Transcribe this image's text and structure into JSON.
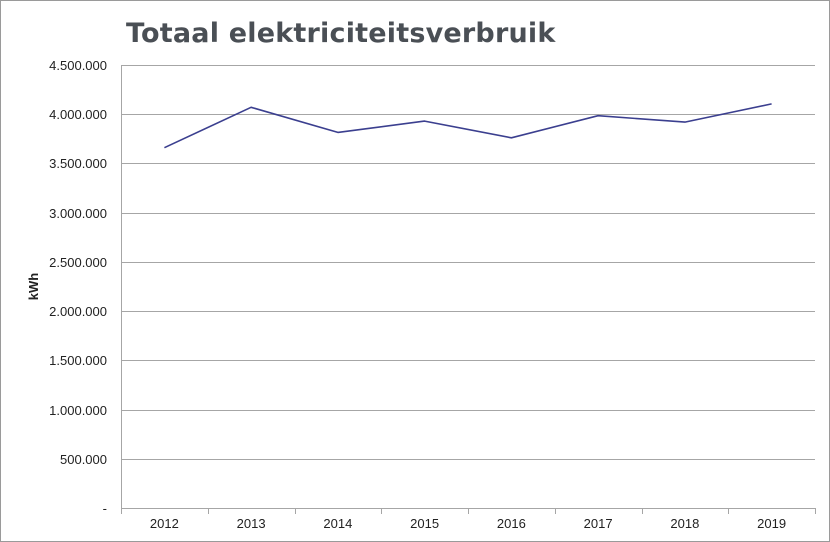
{
  "chart_data": {
    "type": "line",
    "title": "Totaal elektriciteitsverbruik",
    "xlabel": "",
    "ylabel": "kWh",
    "categories": [
      "2012",
      "2013",
      "2014",
      "2015",
      "2016",
      "2017",
      "2018",
      "2019"
    ],
    "series": [
      {
        "values": [
          3660000,
          4070000,
          3815000,
          3930000,
          3760000,
          3985000,
          3920000,
          4105000
        ],
        "color": "#3b3f8f"
      }
    ],
    "ylim": [
      0,
      4500000
    ],
    "yticks": [
      0,
      500000,
      1000000,
      1500000,
      2000000,
      2500000,
      3000000,
      3500000,
      4000000,
      4500000
    ],
    "ytick_labels": [
      "-",
      "500.000",
      "1.000.000",
      "1.500.000",
      "2.000.000",
      "2.500.000",
      "3.000.000",
      "3.500.000",
      "4.000.000",
      "4.500.000"
    ],
    "grid": true,
    "legend": "none",
    "gridline_color": "#a6a6a6",
    "axis_color": "#a6a6a6"
  }
}
